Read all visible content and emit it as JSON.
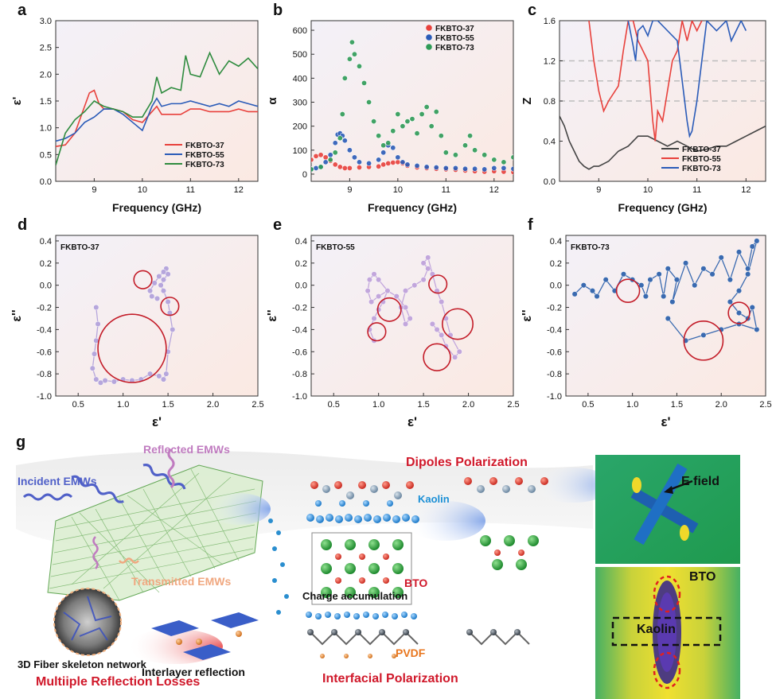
{
  "panels": {
    "a": {
      "letter": "a",
      "chart_data": {
        "type": "line",
        "xlabel": "Frequency (GHz)",
        "ylabel": "ε'",
        "xlim": [
          8.2,
          12.4
        ],
        "ylim": [
          0.0,
          3.0
        ],
        "xticks": [
          9,
          10,
          11,
          12
        ],
        "yticks": [
          0.0,
          0.5,
          1.0,
          1.5,
          2.0,
          2.5,
          3.0
        ],
        "legend_position": "bottom-right",
        "series": [
          {
            "name": "FKBTO-37",
            "color": "#e8413c",
            "x": [
              8.2,
              8.4,
              8.6,
              8.8,
              8.9,
              9.0,
              9.1,
              9.2,
              9.4,
              9.6,
              9.8,
              10.0,
              10.2,
              10.3,
              10.4,
              10.6,
              10.8,
              11.0,
              11.2,
              11.4,
              11.6,
              11.8,
              12.0,
              12.2,
              12.4
            ],
            "y": [
              0.65,
              0.68,
              0.9,
              1.4,
              1.65,
              1.7,
              1.45,
              1.35,
              1.35,
              1.3,
              1.15,
              1.1,
              1.3,
              1.4,
              1.25,
              1.25,
              1.25,
              1.35,
              1.35,
              1.3,
              1.3,
              1.3,
              1.35,
              1.3,
              1.3
            ]
          },
          {
            "name": "FKBTO-55",
            "color": "#2a5bb8",
            "x": [
              8.2,
              8.4,
              8.6,
              8.8,
              9.0,
              9.2,
              9.4,
              9.6,
              9.8,
              10.0,
              10.2,
              10.3,
              10.4,
              10.6,
              10.8,
              11.0,
              11.2,
              11.4,
              11.6,
              11.8,
              12.0,
              12.2,
              12.4
            ],
            "y": [
              0.75,
              0.8,
              0.9,
              1.1,
              1.2,
              1.35,
              1.35,
              1.25,
              1.1,
              0.95,
              1.4,
              1.55,
              1.4,
              1.45,
              1.45,
              1.5,
              1.45,
              1.4,
              1.45,
              1.4,
              1.5,
              1.45,
              1.4
            ]
          },
          {
            "name": "FKBTO-73",
            "color": "#2e8b3e",
            "x": [
              8.2,
              8.4,
              8.6,
              8.8,
              9.0,
              9.2,
              9.4,
              9.6,
              9.8,
              10.0,
              10.2,
              10.3,
              10.4,
              10.6,
              10.8,
              10.9,
              11.0,
              11.2,
              11.4,
              11.6,
              11.8,
              12.0,
              12.2,
              12.4
            ],
            "y": [
              0.3,
              0.9,
              1.15,
              1.3,
              1.5,
              1.4,
              1.35,
              1.3,
              1.2,
              1.2,
              1.5,
              1.95,
              1.65,
              1.75,
              1.7,
              2.35,
              2.0,
              1.95,
              2.4,
              2.0,
              2.25,
              2.15,
              2.3,
              2.1
            ]
          }
        ]
      }
    },
    "b": {
      "letter": "b",
      "chart_data": {
        "type": "scatter",
        "xlabel": "Frequency (GHz)",
        "ylabel": "α",
        "xlim": [
          8.2,
          12.4
        ],
        "ylim": [
          -30,
          640
        ],
        "xticks": [
          9,
          10,
          11,
          12
        ],
        "yticks": [
          0,
          100,
          200,
          300,
          400,
          500,
          600
        ],
        "legend_position": "top-right",
        "series": [
          {
            "name": "FKBTO-37",
            "color": "#e8413c",
            "x": [
              8.2,
              8.3,
              8.4,
              8.5,
              8.6,
              8.7,
              8.8,
              8.9,
              9.0,
              9.2,
              9.4,
              9.6,
              9.7,
              9.8,
              9.9,
              10.0,
              10.1,
              10.2,
              10.4,
              10.6,
              10.8,
              11.0,
              11.2,
              11.4,
              11.6,
              11.8,
              12.0,
              12.2,
              12.4
            ],
            "y": [
              60,
              75,
              80,
              70,
              55,
              40,
              30,
              25,
              25,
              28,
              30,
              32,
              40,
              45,
              48,
              50,
              45,
              35,
              28,
              25,
              22,
              20,
              18,
              15,
              12,
              10,
              12,
              10,
              8
            ]
          },
          {
            "name": "FKBTO-55",
            "color": "#2a5bb8",
            "x": [
              8.2,
              8.3,
              8.4,
              8.5,
              8.6,
              8.7,
              8.75,
              8.8,
              8.85,
              8.9,
              9.0,
              9.1,
              9.2,
              9.4,
              9.6,
              9.7,
              9.8,
              9.9,
              10.0,
              10.1,
              10.2,
              10.4,
              10.6,
              10.8,
              11.0,
              11.2,
              11.4,
              11.6,
              11.8,
              12.0,
              12.2,
              12.4
            ],
            "y": [
              20,
              25,
              30,
              50,
              80,
              130,
              165,
              170,
              160,
              140,
              100,
              70,
              50,
              45,
              60,
              90,
              120,
              110,
              70,
              50,
              40,
              35,
              30,
              28,
              25,
              25,
              22,
              22,
              20,
              25,
              25,
              22
            ]
          },
          {
            "name": "FKBTO-73",
            "color": "#2e9b57",
            "x": [
              8.2,
              8.4,
              8.6,
              8.7,
              8.8,
              8.85,
              8.9,
              9.0,
              9.05,
              9.1,
              9.2,
              9.3,
              9.4,
              9.5,
              9.6,
              9.7,
              9.8,
              9.9,
              10.0,
              10.1,
              10.2,
              10.3,
              10.4,
              10.5,
              10.6,
              10.7,
              10.8,
              10.9,
              11.0,
              11.2,
              11.4,
              11.5,
              11.6,
              11.8,
              12.0,
              12.2,
              12.4
            ],
            "y": [
              20,
              30,
              60,
              90,
              150,
              250,
              400,
              480,
              550,
              500,
              450,
              380,
              300,
              220,
              160,
              120,
              130,
              180,
              250,
              200,
              220,
              230,
              170,
              250,
              280,
              200,
              260,
              160,
              90,
              80,
              120,
              160,
              100,
              80,
              60,
              50,
              70
            ]
          }
        ]
      }
    },
    "c": {
      "letter": "c",
      "chart_data": {
        "type": "line",
        "xlabel": "Frequency (GHz)",
        "ylabel": "Z",
        "xlim": [
          8.2,
          12.4
        ],
        "ylim": [
          0.0,
          1.6
        ],
        "xticks": [
          9,
          10,
          11,
          12
        ],
        "yticks": [
          0.0,
          0.4,
          0.8,
          1.2,
          1.6
        ],
        "reference_lines": [
          0.8,
          1.0,
          1.2
        ],
        "legend_position": "bottom-right",
        "series": [
          {
            "name": "FKBTO-37",
            "color": "#444444",
            "x": [
              8.2,
              8.3,
              8.4,
              8.5,
              8.6,
              8.7,
              8.8,
              8.9,
              9.0,
              9.2,
              9.4,
              9.6,
              9.8,
              10.0,
              10.2,
              10.4,
              10.6,
              10.8,
              11.0,
              11.2,
              11.4,
              11.6,
              11.8,
              12.0,
              12.2,
              12.4
            ],
            "y": [
              0.65,
              0.55,
              0.4,
              0.3,
              0.2,
              0.15,
              0.12,
              0.15,
              0.15,
              0.2,
              0.3,
              0.35,
              0.45,
              0.45,
              0.4,
              0.35,
              0.4,
              0.35,
              0.3,
              0.32,
              0.35,
              0.35,
              0.4,
              0.45,
              0.5,
              0.55
            ]
          },
          {
            "name": "FKBTO-55",
            "color": "#e8413c",
            "x": [
              8.8,
              8.9,
              9.0,
              9.1,
              9.2,
              9.4,
              9.5,
              9.6,
              9.7,
              9.8,
              10.0,
              10.1,
              10.15,
              10.2,
              10.3,
              10.4,
              10.5,
              10.6,
              10.7,
              10.8,
              10.9,
              11.0,
              11.1
            ],
            "y": [
              1.6,
              1.2,
              0.9,
              0.7,
              0.8,
              0.95,
              1.3,
              1.6,
              1.6,
              1.4,
              1.2,
              0.6,
              0.4,
              0.7,
              0.6,
              0.9,
              1.2,
              1.3,
              1.6,
              1.4,
              1.6,
              1.5,
              1.6
            ]
          },
          {
            "name": "FKBTO-73",
            "color": "#2a5bb8",
            "x": [
              9.6,
              9.7,
              9.75,
              9.8,
              9.9,
              10.0,
              10.1,
              10.2,
              10.4,
              10.6,
              10.7,
              10.8,
              10.85,
              10.9,
              11.0,
              11.1,
              11.2,
              11.4,
              11.6,
              11.7,
              11.8,
              11.9,
              12.0
            ],
            "y": [
              1.6,
              1.35,
              1.2,
              1.5,
              1.55,
              1.45,
              1.6,
              1.6,
              1.5,
              1.4,
              1.0,
              0.6,
              0.45,
              0.5,
              0.8,
              1.2,
              1.6,
              1.5,
              1.6,
              1.4,
              1.5,
              1.6,
              1.5
            ]
          }
        ]
      }
    },
    "d": {
      "letter": "d",
      "sample": "FKBTO-37",
      "chart_data": {
        "type": "scatter",
        "xlabel": "ε'",
        "ylabel": "ε''",
        "xlim": [
          0.25,
          2.5
        ],
        "ylim": [
          -1.0,
          0.45
        ],
        "xticks": [
          0.5,
          1.0,
          1.5,
          2.0,
          2.5
        ],
        "yticks": [
          -1.0,
          -0.8,
          -0.6,
          -0.4,
          -0.2,
          0.0,
          0.2,
          0.4
        ],
        "color": "#b6a6dc",
        "x": [
          0.7,
          0.72,
          0.7,
          0.68,
          0.66,
          0.7,
          0.75,
          0.8,
          0.9,
          1.0,
          1.1,
          1.2,
          1.3,
          1.4,
          1.45,
          1.48,
          1.5,
          1.55,
          1.52,
          1.5,
          1.45,
          1.42,
          1.45,
          1.5,
          1.48,
          1.45,
          1.4,
          1.35,
          1.3,
          1.32,
          1.38
        ],
        "y": [
          -0.2,
          -0.35,
          -0.5,
          -0.62,
          -0.75,
          -0.85,
          -0.88,
          -0.86,
          -0.87,
          -0.85,
          -0.86,
          -0.85,
          -0.8,
          -0.82,
          -0.85,
          -0.8,
          -0.6,
          -0.4,
          -0.25,
          -0.15,
          -0.05,
          0.0,
          0.05,
          0.1,
          0.15,
          0.12,
          0.08,
          0.02,
          -0.05,
          -0.1,
          -0.12
        ],
        "circles": [
          {
            "cx": 1.1,
            "cy": -0.57,
            "r": 0.38
          },
          {
            "cx": 1.22,
            "cy": 0.05,
            "r": 0.1
          },
          {
            "cx": 1.52,
            "cy": -0.19,
            "r": 0.1
          }
        ]
      }
    },
    "e": {
      "letter": "e",
      "sample": "FKBTO-55",
      "chart_data": {
        "type": "scatter",
        "xlabel": "ε'",
        "ylabel": "ε''",
        "xlim": [
          0.25,
          2.5
        ],
        "ylim": [
          -1.0,
          0.45
        ],
        "xticks": [
          0.5,
          1.0,
          1.5,
          2.0,
          2.5
        ],
        "yticks": [
          -1.0,
          -0.8,
          -0.6,
          -0.4,
          -0.2,
          0.0,
          0.2,
          0.4
        ],
        "color": "#c2a6dc",
        "x": [
          0.95,
          0.9,
          0.95,
          1.0,
          1.05,
          1.1,
          1.0,
          0.95,
          0.9,
          0.88,
          0.92,
          1.0,
          1.1,
          1.2,
          1.3,
          1.35,
          1.3,
          1.25,
          1.3,
          1.4,
          1.5,
          1.55,
          1.5,
          1.55,
          1.6,
          1.65,
          1.7,
          1.75,
          1.8,
          1.9,
          1.85,
          1.75,
          1.7,
          1.65,
          1.6
        ],
        "y": [
          -0.5,
          -0.4,
          -0.3,
          -0.22,
          -0.15,
          -0.05,
          0.05,
          0.1,
          0.05,
          -0.05,
          -0.15,
          -0.1,
          -0.05,
          -0.1,
          -0.2,
          -0.3,
          -0.35,
          -0.2,
          -0.05,
          0.0,
          0.05,
          0.15,
          0.2,
          0.25,
          0.1,
          -0.05,
          -0.15,
          -0.3,
          -0.45,
          -0.6,
          -0.65,
          -0.55,
          -0.45,
          -0.4,
          -0.35
        ],
        "circles": [
          {
            "cx": 1.12,
            "cy": -0.22,
            "r": 0.13
          },
          {
            "cx": 0.98,
            "cy": -0.42,
            "r": 0.1
          },
          {
            "cx": 1.66,
            "cy": 0.01,
            "r": 0.1
          },
          {
            "cx": 1.88,
            "cy": -0.35,
            "r": 0.17
          },
          {
            "cx": 1.65,
            "cy": -0.65,
            "r": 0.15
          }
        ]
      }
    },
    "f": {
      "letter": "f",
      "sample": "FKBTO-73",
      "chart_data": {
        "type": "scatter",
        "xlabel": "ε'",
        "ylabel": "ε''",
        "xlim": [
          0.25,
          2.5
        ],
        "ylim": [
          -1.0,
          0.45
        ],
        "xticks": [
          0.5,
          1.0,
          1.5,
          2.0,
          2.5
        ],
        "yticks": [
          -1.0,
          -0.8,
          -0.6,
          -0.4,
          -0.2,
          0.0,
          0.2,
          0.4
        ],
        "color": "#3a6ab0",
        "x": [
          0.35,
          0.45,
          0.55,
          0.6,
          0.7,
          0.8,
          0.9,
          1.0,
          1.1,
          1.15,
          1.2,
          1.3,
          1.35,
          1.4,
          1.5,
          1.45,
          1.6,
          1.7,
          1.8,
          1.9,
          2.0,
          2.1,
          2.2,
          2.3,
          2.35,
          2.4,
          2.3,
          2.2,
          2.1,
          2.2,
          2.3,
          2.35,
          2.4,
          2.2,
          2.0,
          1.8,
          1.6,
          1.4
        ],
        "y": [
          -0.08,
          0.0,
          -0.05,
          -0.1,
          0.05,
          -0.05,
          0.1,
          0.05,
          0.0,
          -0.1,
          0.05,
          0.1,
          -0.1,
          0.15,
          0.05,
          -0.15,
          0.2,
          0.0,
          0.15,
          0.1,
          0.25,
          0.05,
          0.3,
          0.15,
          0.35,
          0.4,
          0.1,
          -0.05,
          -0.15,
          -0.25,
          -0.3,
          -0.2,
          -0.4,
          -0.35,
          -0.4,
          -0.45,
          -0.5,
          -0.3
        ],
        "circles": [
          {
            "cx": 0.95,
            "cy": -0.05,
            "r": 0.13
          },
          {
            "cx": 1.8,
            "cy": -0.5,
            "r": 0.22
          },
          {
            "cx": 2.2,
            "cy": -0.25,
            "r": 0.12
          }
        ]
      }
    }
  },
  "schematic": {
    "letter": "g",
    "labels": {
      "reflected": "Reflected EMWs",
      "incident": "Incident EMWs",
      "transmitted": "Transmitted EMWs",
      "interlayer": "Interlayer reflection",
      "fiber_network": "3D Fiber skeleton network",
      "multiple_losses": "Multiiple Reflection Losses",
      "dipoles": "Dipoles Polarization",
      "kaolin_mid": "Kaolin",
      "bto_mid": "BTO",
      "charge": "Charge accumulation",
      "pvdf": "PVDF",
      "interfacial": "Interfacial Polarization",
      "e_field": "E field",
      "bto_right": "BTO",
      "kaolin_right": "Kaolin"
    },
    "colors": {
      "accent_red": "#d0182a",
      "kaolin_blue": "#1a8fd6",
      "pvdf_orange": "#e8761e",
      "reflected_pink": "#c07cc0",
      "incident_blue": "#5060c8",
      "transmitted_peach": "#f0a880"
    }
  }
}
